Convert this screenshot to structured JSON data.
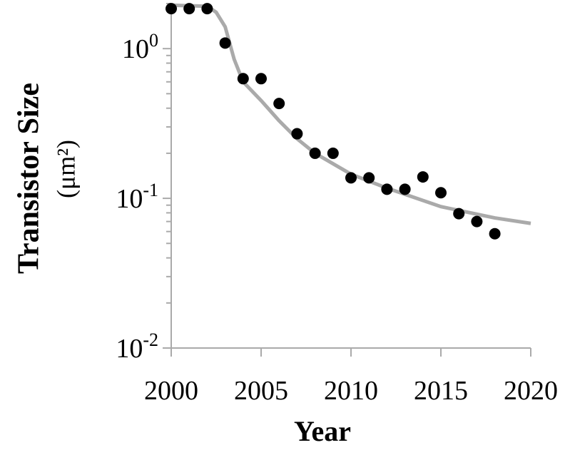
{
  "chart_data": {
    "type": "scatter",
    "xlabel": "Year",
    "ylabel": "Transistor Size",
    "ylabel_unit": "(μm²)",
    "xlim": [
      2000,
      2020
    ],
    "xticks": [
      2000,
      2005,
      2010,
      2015,
      2020
    ],
    "ylim": [
      0.01,
      2
    ],
    "log_y": true,
    "yticks": [
      {
        "value": 0.01,
        "label": "10",
        "exponent": "-2"
      },
      {
        "value": 0.1,
        "label": "10",
        "exponent": "-1"
      },
      {
        "value": 1,
        "label": "10",
        "exponent": "0"
      }
    ],
    "minor_yticks": [
      0.02,
      0.03,
      0.04,
      0.05,
      0.06,
      0.07,
      0.08,
      0.09,
      0.2,
      0.3,
      0.4,
      0.5,
      0.6,
      0.7,
      0.8,
      0.9,
      2
    ],
    "series": [
      {
        "color": "#000000",
        "x": [
          2000,
          2001,
          2002,
          2003,
          2004,
          2005,
          2006,
          2007,
          2008,
          2009,
          2010,
          2011,
          2012,
          2013,
          2014,
          2015,
          2016,
          2017,
          2018
        ],
        "values": [
          1.85,
          1.85,
          1.85,
          1.09,
          0.63,
          0.63,
          0.43,
          0.27,
          0.2,
          0.2,
          0.137,
          0.137,
          0.115,
          0.115,
          0.139,
          0.109,
          0.079,
          0.07,
          0.058
        ]
      }
    ],
    "trend": {
      "color": "#aaaaaa",
      "x": [
        2000,
        2002,
        2002.5,
        2003,
        2003.5,
        2004,
        2005,
        2006,
        2007,
        2008,
        2010,
        2012,
        2015,
        2018,
        2020
      ],
      "values": [
        1.95,
        1.92,
        1.75,
        1.4,
        0.85,
        0.6,
        0.45,
        0.33,
        0.25,
        0.2,
        0.145,
        0.117,
        0.088,
        0.074,
        0.068
      ]
    }
  }
}
